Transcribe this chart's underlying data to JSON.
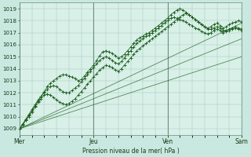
{
  "xlabel": "Pression niveau de la mer( hPa )",
  "background_color": "#c8e8e0",
  "plot_bg_color": "#d8f0e8",
  "grid_color": "#a8c8c0",
  "line_color_dark": "#1a5c1a",
  "line_color_light": "#4a8c4a",
  "xlim": [
    0,
    144
  ],
  "ylim": [
    1008.5,
    1019.5
  ],
  "yticks": [
    1009,
    1010,
    1011,
    1012,
    1013,
    1014,
    1015,
    1016,
    1017,
    1018,
    1019
  ],
  "day_ticks": [
    0,
    48,
    96,
    144
  ],
  "day_labels": [
    "Mer",
    "Jeu",
    "Ven",
    "Sam"
  ],
  "figsize": [
    3.2,
    2.0
  ],
  "dpi": 100,
  "straight_lines": [
    {
      "x0": 0,
      "y0": 1009.0,
      "x1": 144,
      "y1": 1017.8
    },
    {
      "x0": 0,
      "y0": 1009.0,
      "x1": 144,
      "y1": 1016.5
    },
    {
      "x0": 0,
      "y0": 1009.0,
      "x1": 144,
      "y1": 1015.0
    }
  ],
  "wavy_series": [
    {
      "x": [
        0,
        2,
        4,
        6,
        8,
        10,
        12,
        14,
        16,
        18,
        20,
        22,
        24,
        26,
        28,
        30,
        32,
        34,
        36,
        38,
        40,
        42,
        44,
        46,
        48,
        50,
        52,
        54,
        56,
        58,
        60,
        62,
        64,
        66,
        68,
        70,
        72,
        74,
        76,
        78,
        80,
        82,
        84,
        86,
        88,
        90,
        92,
        94,
        96,
        98,
        100,
        102,
        104,
        106,
        108,
        110,
        112,
        114,
        116,
        118,
        120,
        122,
        124,
        126,
        128,
        130,
        132,
        134,
        136,
        138,
        140,
        142,
        144
      ],
      "y": [
        1009.0,
        1009.3,
        1009.7,
        1010.1,
        1010.5,
        1010.9,
        1011.3,
        1011.7,
        1012.1,
        1012.5,
        1012.8,
        1013.0,
        1013.2,
        1013.4,
        1013.5,
        1013.5,
        1013.4,
        1013.3,
        1013.2,
        1013.0,
        1013.1,
        1013.4,
        1013.7,
        1014.0,
        1014.3,
        1014.7,
        1015.1,
        1015.4,
        1015.5,
        1015.4,
        1015.3,
        1015.1,
        1014.9,
        1015.0,
        1015.2,
        1015.5,
        1015.8,
        1016.1,
        1016.4,
        1016.6,
        1016.7,
        1016.9,
        1017.0,
        1017.2,
        1017.4,
        1017.6,
        1017.8,
        1018.0,
        1018.2,
        1018.5,
        1018.7,
        1018.9,
        1019.0,
        1018.9,
        1018.7,
        1018.5,
        1018.3,
        1018.1,
        1017.9,
        1017.7,
        1017.5,
        1017.4,
        1017.5,
        1017.7,
        1017.8,
        1017.6,
        1017.4,
        1017.5,
        1017.7,
        1017.8,
        1017.9,
        1018.0,
        1017.9
      ],
      "color": "#1a5c1a",
      "lw": 0.7
    },
    {
      "x": [
        0,
        2,
        4,
        6,
        8,
        10,
        12,
        14,
        16,
        18,
        20,
        22,
        24,
        26,
        28,
        30,
        32,
        34,
        36,
        38,
        40,
        42,
        44,
        46,
        48,
        50,
        52,
        54,
        56,
        58,
        60,
        62,
        64,
        66,
        68,
        70,
        72,
        74,
        76,
        78,
        80,
        82,
        84,
        86,
        88,
        90,
        92,
        94,
        96,
        98,
        100,
        102,
        104,
        106,
        108,
        110,
        112,
        114,
        116,
        118,
        120,
        122,
        124,
        126,
        128,
        130,
        132,
        134,
        136,
        138,
        140,
        142,
        144
      ],
      "y": [
        1009.0,
        1009.3,
        1009.7,
        1010.0,
        1010.4,
        1010.8,
        1011.2,
        1011.5,
        1011.8,
        1011.9,
        1011.8,
        1011.6,
        1011.4,
        1011.2,
        1011.1,
        1011.0,
        1011.1,
        1011.3,
        1011.5,
        1011.8,
        1012.1,
        1012.4,
        1012.7,
        1013.0,
        1013.3,
        1013.6,
        1013.9,
        1014.1,
        1014.3,
        1014.2,
        1014.1,
        1013.9,
        1013.8,
        1014.0,
        1014.3,
        1014.6,
        1014.9,
        1015.2,
        1015.5,
        1015.7,
        1015.9,
        1016.1,
        1016.3,
        1016.5,
        1016.7,
        1016.9,
        1017.1,
        1017.3,
        1017.5,
        1017.7,
        1017.9,
        1018.1,
        1018.3,
        1018.5,
        1018.6,
        1018.5,
        1018.3,
        1018.1,
        1017.9,
        1017.7,
        1017.5,
        1017.3,
        1017.3,
        1017.4,
        1017.5,
        1017.4,
        1017.2,
        1017.2,
        1017.3,
        1017.4,
        1017.5,
        1017.4,
        1017.3
      ],
      "color": "#1a5c1a",
      "lw": 0.7
    },
    {
      "x": [
        0,
        2,
        4,
        6,
        8,
        10,
        12,
        14,
        16,
        18,
        20,
        22,
        24,
        26,
        28,
        30,
        32,
        34,
        36,
        38,
        40,
        42,
        44,
        46,
        48,
        50,
        52,
        54,
        56,
        58,
        60,
        62,
        64,
        66,
        68,
        70,
        72,
        74,
        76,
        78,
        80,
        82,
        84,
        86,
        88,
        90,
        92,
        94,
        96,
        98,
        100,
        102,
        104,
        106,
        108,
        110,
        112,
        114,
        116,
        118,
        120,
        122,
        124,
        126,
        128,
        130,
        132,
        134,
        136,
        138,
        140,
        142,
        144
      ],
      "y": [
        1009.0,
        1009.4,
        1009.8,
        1010.2,
        1010.6,
        1011.0,
        1011.4,
        1011.7,
        1012.0,
        1012.3,
        1012.5,
        1012.6,
        1012.5,
        1012.3,
        1012.1,
        1012.0,
        1012.0,
        1012.2,
        1012.4,
        1012.6,
        1012.9,
        1013.2,
        1013.5,
        1013.8,
        1014.1,
        1014.4,
        1014.7,
        1014.9,
        1015.0,
        1014.9,
        1014.7,
        1014.5,
        1014.4,
        1014.6,
        1014.9,
        1015.2,
        1015.5,
        1015.8,
        1016.1,
        1016.3,
        1016.5,
        1016.7,
        1016.8,
        1017.0,
        1017.2,
        1017.4,
        1017.6,
        1017.8,
        1018.0,
        1018.2,
        1018.3,
        1018.2,
        1018.1,
        1018.0,
        1017.9,
        1017.7,
        1017.6,
        1017.4,
        1017.3,
        1017.1,
        1017.0,
        1016.9,
        1017.0,
        1017.2,
        1017.3,
        1017.2,
        1017.0,
        1017.1,
        1017.2,
        1017.3,
        1017.4,
        1017.3,
        1017.2
      ],
      "color": "#1a5c1a",
      "lw": 0.7
    }
  ]
}
